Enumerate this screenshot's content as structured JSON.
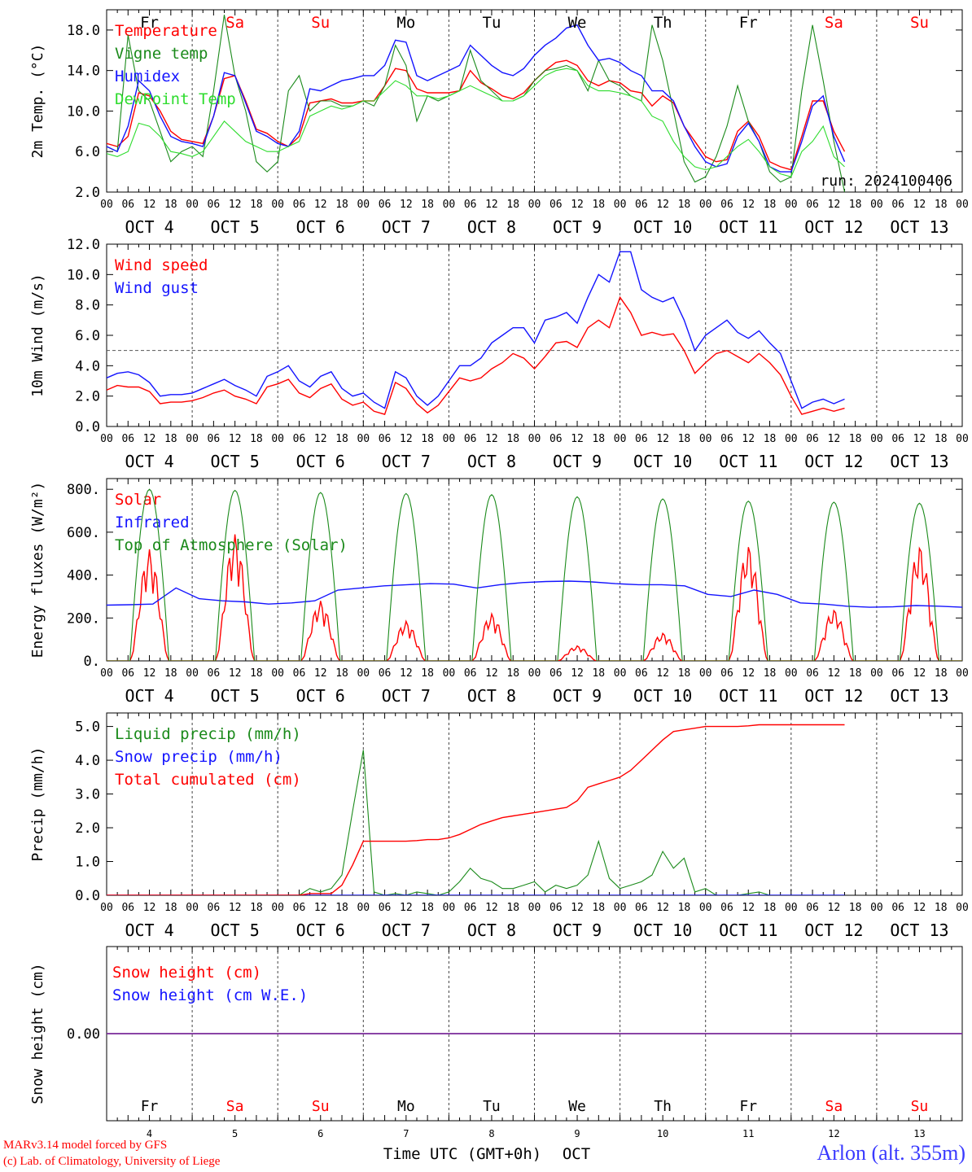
{
  "colors": {
    "red": "#ff0000",
    "dark_green": "#1a8a1a",
    "blue": "#1414ff",
    "light_green": "#2edc2e",
    "purple": "#7a2a9a",
    "black": "#000000",
    "title_blue": "#3a3aff"
  },
  "hour_ticks": [
    "00",
    "06",
    "12",
    "18"
  ],
  "date_labels": [
    "OCT  4",
    "OCT  5",
    "OCT  6",
    "OCT  7",
    "OCT  8",
    "OCT  9",
    "OCT 10",
    "OCT 11",
    "OCT 12",
    "OCT 13"
  ],
  "day_names": [
    {
      "label": "Fr",
      "weekend": false
    },
    {
      "label": "Sa",
      "weekend": true
    },
    {
      "label": "Su",
      "weekend": true
    },
    {
      "label": "Mo",
      "weekend": false
    },
    {
      "label": "Tu",
      "weekend": false
    },
    {
      "label": "We",
      "weekend": false
    },
    {
      "label": "Th",
      "weekend": false
    },
    {
      "label": "Fr",
      "weekend": false
    },
    {
      "label": "Sa",
      "weekend": true
    },
    {
      "label": "Su",
      "weekend": true
    }
  ],
  "bottom_day_numbers": [
    "4",
    "5",
    "6",
    "7",
    "8",
    "9",
    "10",
    "11",
    "12",
    "13"
  ],
  "x_axis_label": "Time UTC (GMT+0h)",
  "x_axis_month": "OCT",
  "run_label": "run: 2024100406",
  "footer": {
    "model": "MARv3.14 model forced by GFS",
    "credit": "(c) Lab. of Climatology, University of Liege",
    "station": "Arlon (alt. 355m)"
  },
  "chart_data": [
    {
      "type": "line",
      "ylabel": "2m Temp. (°C)",
      "ylim": [
        2.0,
        20.0
      ],
      "yticks": [
        "2.0",
        "6.0",
        "10.0",
        "14.0",
        "18.0"
      ],
      "x_hours_step": 3,
      "series": [
        {
          "name": "Temperature",
          "color": "red",
          "values": [
            6.8,
            6.5,
            7.5,
            11.8,
            11.5,
            10.0,
            8.0,
            7.2,
            7.0,
            6.8,
            9.5,
            13.2,
            13.5,
            11.0,
            8.2,
            7.8,
            7.0,
            6.5,
            7.5,
            10.8,
            11.0,
            11.2,
            10.8,
            10.8,
            11.0,
            11.0,
            12.5,
            14.2,
            14.0,
            12.2,
            11.8,
            11.8,
            11.8,
            12.0,
            14.0,
            12.8,
            12.2,
            11.5,
            11.2,
            11.8,
            13.0,
            14.0,
            14.8,
            15.0,
            14.5,
            13.0,
            12.5,
            13.0,
            12.8,
            12.0,
            11.8,
            10.5,
            11.5,
            10.8,
            8.5,
            7.0,
            5.5,
            5.0,
            5.2,
            8.0,
            9.0,
            7.5,
            5.0,
            4.5,
            4.2,
            7.5,
            11.0,
            11.0,
            8.0,
            6.0
          ]
        },
        {
          "name": "Vigne temp",
          "color": "dark_green",
          "values": [
            6.5,
            6.0,
            17.5,
            12.0,
            11.0,
            8.0,
            5.0,
            6.0,
            6.5,
            5.5,
            12.0,
            19.5,
            13.5,
            10.0,
            5.0,
            4.0,
            5.0,
            12.0,
            13.5,
            10.0,
            11.0,
            11.0,
            10.5,
            10.5,
            11.0,
            10.5,
            12.5,
            16.5,
            14.5,
            9.0,
            11.5,
            11.0,
            11.5,
            12.0,
            16.0,
            13.0,
            12.0,
            11.0,
            11.0,
            11.5,
            13.0,
            14.0,
            14.2,
            14.5,
            14.0,
            12.0,
            15.0,
            13.0,
            12.5,
            11.5,
            11.0,
            18.5,
            15.0,
            10.0,
            5.0,
            3.0,
            3.5,
            5.5,
            8.5,
            12.5,
            9.0,
            7.0,
            4.0,
            3.0,
            3.5,
            12.0,
            18.5,
            13.0,
            7.0,
            2.0
          ]
        },
        {
          "name": "Humidex",
          "color": "blue",
          "values": [
            6.5,
            6.0,
            8.5,
            13.0,
            12.0,
            9.5,
            7.5,
            7.0,
            6.8,
            6.5,
            9.5,
            13.8,
            13.5,
            10.8,
            8.0,
            7.5,
            6.8,
            6.5,
            8.0,
            12.2,
            12.0,
            12.5,
            13.0,
            13.2,
            13.5,
            13.5,
            14.5,
            17.0,
            16.8,
            13.5,
            13.0,
            13.5,
            14.0,
            14.5,
            16.5,
            15.5,
            14.5,
            13.8,
            13.5,
            14.2,
            15.5,
            16.5,
            17.2,
            18.2,
            18.5,
            16.5,
            15.0,
            15.2,
            14.8,
            14.0,
            13.5,
            12.0,
            12.0,
            11.0,
            8.5,
            6.5,
            5.0,
            4.5,
            4.8,
            7.5,
            8.8,
            7.0,
            4.5,
            4.0,
            4.0,
            7.0,
            10.5,
            11.5,
            7.5,
            5.0
          ]
        },
        {
          "name": "DewPoint Temp",
          "color": "light_green",
          "values": [
            5.8,
            5.5,
            6.0,
            8.8,
            8.5,
            7.5,
            6.0,
            5.8,
            5.5,
            6.0,
            7.5,
            9.0,
            8.0,
            7.0,
            6.5,
            6.0,
            6.0,
            6.5,
            7.0,
            9.5,
            10.0,
            10.5,
            10.2,
            10.5,
            11.0,
            11.0,
            12.0,
            13.0,
            12.5,
            11.5,
            11.5,
            11.2,
            11.5,
            12.0,
            12.5,
            12.0,
            11.5,
            11.0,
            11.0,
            11.5,
            12.5,
            13.5,
            14.0,
            14.2,
            14.0,
            12.5,
            12.0,
            12.0,
            11.8,
            11.5,
            11.0,
            9.5,
            9.0,
            7.0,
            5.5,
            4.5,
            4.2,
            4.5,
            5.5,
            6.5,
            7.2,
            6.0,
            4.5,
            3.8,
            3.5,
            6.0,
            7.0,
            8.5,
            5.5,
            4.5
          ]
        }
      ]
    },
    {
      "type": "line",
      "ylabel": "10m Wind (m/s)",
      "ylim": [
        0.0,
        12.0
      ],
      "yticks": [
        "0.0",
        "2.0",
        "4.0",
        "6.0",
        "8.0",
        "10.0",
        "12.0"
      ],
      "reference_line": 5.0,
      "x_hours_step": 3,
      "series": [
        {
          "name": "Wind speed",
          "color": "red",
          "values": [
            2.4,
            2.7,
            2.6,
            2.6,
            2.3,
            1.5,
            1.6,
            1.6,
            1.7,
            1.9,
            2.2,
            2.4,
            2.0,
            1.8,
            1.5,
            2.6,
            2.8,
            3.1,
            2.2,
            1.9,
            2.5,
            2.8,
            1.8,
            1.4,
            1.6,
            1.0,
            0.8,
            2.9,
            2.5,
            1.5,
            0.9,
            1.4,
            2.3,
            3.2,
            3.0,
            3.2,
            3.8,
            4.2,
            4.8,
            4.5,
            3.8,
            4.6,
            5.5,
            5.6,
            5.2,
            6.5,
            7.0,
            6.5,
            8.5,
            7.5,
            6.0,
            6.2,
            6.0,
            6.1,
            5.0,
            3.5,
            4.2,
            4.8,
            5.0,
            4.6,
            4.2,
            4.8,
            4.2,
            3.4,
            2.0,
            0.8,
            1.0,
            1.2,
            1.0,
            1.2
          ]
        },
        {
          "name": "Wind gust",
          "color": "blue",
          "values": [
            3.2,
            3.5,
            3.6,
            3.4,
            2.9,
            2.0,
            2.1,
            2.1,
            2.2,
            2.5,
            2.8,
            3.1,
            2.7,
            2.4,
            2.0,
            3.3,
            3.6,
            4.0,
            3.0,
            2.6,
            3.3,
            3.6,
            2.5,
            2.0,
            2.2,
            1.6,
            1.2,
            3.6,
            3.2,
            2.0,
            1.4,
            2.0,
            3.0,
            4.0,
            4.0,
            4.5,
            5.5,
            6.0,
            6.5,
            6.5,
            5.5,
            7.0,
            7.2,
            7.5,
            6.8,
            8.5,
            10.0,
            9.5,
            11.5,
            11.5,
            9.0,
            8.5,
            8.2,
            8.5,
            7.0,
            5.0,
            6.0,
            6.5,
            7.0,
            6.2,
            5.8,
            6.3,
            5.5,
            4.8,
            3.0,
            1.2,
            1.6,
            1.8,
            1.5,
            1.8
          ]
        }
      ]
    },
    {
      "type": "line",
      "ylabel": "Energy fluxes (W/m²)",
      "ylim": [
        0,
        850
      ],
      "yticks": [
        "0.",
        "200.",
        "400.",
        "600.",
        "800."
      ],
      "x_hours_step": 1,
      "series": [
        {
          "name": "Solar",
          "color": "red",
          "peaks": [
            520,
            590,
            280,
            185,
            220,
            70,
            130,
            540,
            240,
            540
          ],
          "peak_shapes": [
            0.9,
            1.0,
            0.55,
            0.5,
            0.6,
            0.35,
            0.5,
            0.85,
            0.65,
            1.0
          ]
        },
        {
          "name": "Infrared",
          "color": "blue",
          "values": [
            260,
            262,
            265,
            340,
            290,
            280,
            275,
            265,
            270,
            280,
            330,
            340,
            350,
            355,
            360,
            358,
            340,
            355,
            365,
            370,
            372,
            368,
            360,
            355,
            355,
            350,
            310,
            300,
            330,
            310,
            270,
            265,
            255,
            250,
            252,
            258,
            255,
            250
          ]
        },
        {
          "name": "Top of Atmosphere (Solar)",
          "color": "dark_green",
          "peaks": [
            800,
            795,
            785,
            780,
            775,
            765,
            755,
            745,
            740,
            735
          ]
        }
      ]
    },
    {
      "type": "line",
      "ylabel": "Precip (mm/h)",
      "ylim": [
        0.0,
        5.4
      ],
      "yticks": [
        "0.0",
        "1.0",
        "2.0",
        "3.0",
        "4.0",
        "5.0"
      ],
      "x_hours_step": 3,
      "series": [
        {
          "name": "Liquid precip (mm/h)",
          "color": "dark_green",
          "values": [
            0,
            0,
            0,
            0,
            0,
            0,
            0,
            0,
            0,
            0,
            0,
            0,
            0,
            0,
            0,
            0,
            0,
            0,
            0,
            0.2,
            0.1,
            0.2,
            0.6,
            2.5,
            4.3,
            0.1,
            0,
            0.05,
            0,
            0.1,
            0.05,
            0,
            0.1,
            0.4,
            0.8,
            0.5,
            0.4,
            0.2,
            0.2,
            0.3,
            0.4,
            0.1,
            0.3,
            0.2,
            0.3,
            0.6,
            1.6,
            0.5,
            0.2,
            0.3,
            0.4,
            0.6,
            1.3,
            0.8,
            1.1,
            0.1,
            0.2,
            0,
            0,
            0,
            0.05,
            0.1,
            0,
            0,
            0,
            0,
            0,
            0,
            0,
            0
          ]
        },
        {
          "name": "Snow precip (mm/h)",
          "color": "blue",
          "values": [
            0,
            0,
            0,
            0,
            0,
            0,
            0,
            0,
            0,
            0,
            0,
            0,
            0,
            0,
            0,
            0,
            0,
            0,
            0,
            0,
            0,
            0,
            0,
            0,
            0,
            0,
            0,
            0,
            0,
            0,
            0,
            0,
            0,
            0,
            0,
            0,
            0,
            0,
            0,
            0,
            0,
            0,
            0,
            0,
            0,
            0,
            0,
            0,
            0,
            0,
            0,
            0,
            0,
            0,
            0,
            0,
            0,
            0,
            0,
            0,
            0,
            0,
            0,
            0,
            0,
            0,
            0,
            0,
            0,
            0
          ]
        },
        {
          "name": "Total cumulated (cm)",
          "color": "red",
          "values": [
            0,
            0,
            0,
            0,
            0,
            0,
            0,
            0,
            0,
            0,
            0,
            0,
            0,
            0,
            0,
            0,
            0,
            0,
            0,
            0.05,
            0.05,
            0.05,
            0.3,
            0.9,
            1.6,
            1.6,
            1.6,
            1.6,
            1.6,
            1.62,
            1.65,
            1.65,
            1.7,
            1.8,
            1.95,
            2.1,
            2.2,
            2.3,
            2.35,
            2.4,
            2.45,
            2.5,
            2.55,
            2.6,
            2.8,
            3.2,
            3.3,
            3.4,
            3.5,
            3.7,
            4.0,
            4.3,
            4.6,
            4.85,
            4.9,
            4.95,
            5.0,
            5.0,
            5.0,
            5.0,
            5.02,
            5.05,
            5.05,
            5.05,
            5.05,
            5.05,
            5.05,
            5.05,
            5.05,
            5.05
          ]
        }
      ]
    },
    {
      "type": "line",
      "ylabel": "Snow height (cm)",
      "ylim": [
        -0.01,
        0.01
      ],
      "yticks": [
        "0.00"
      ],
      "x_hours_step": 3,
      "series": [
        {
          "name": "Snow height (cm)",
          "color": "red",
          "values": [
            0,
            0
          ]
        },
        {
          "name": "Snow height (cm W.E.)",
          "color": "blue",
          "values": [
            0,
            0
          ]
        }
      ]
    }
  ]
}
